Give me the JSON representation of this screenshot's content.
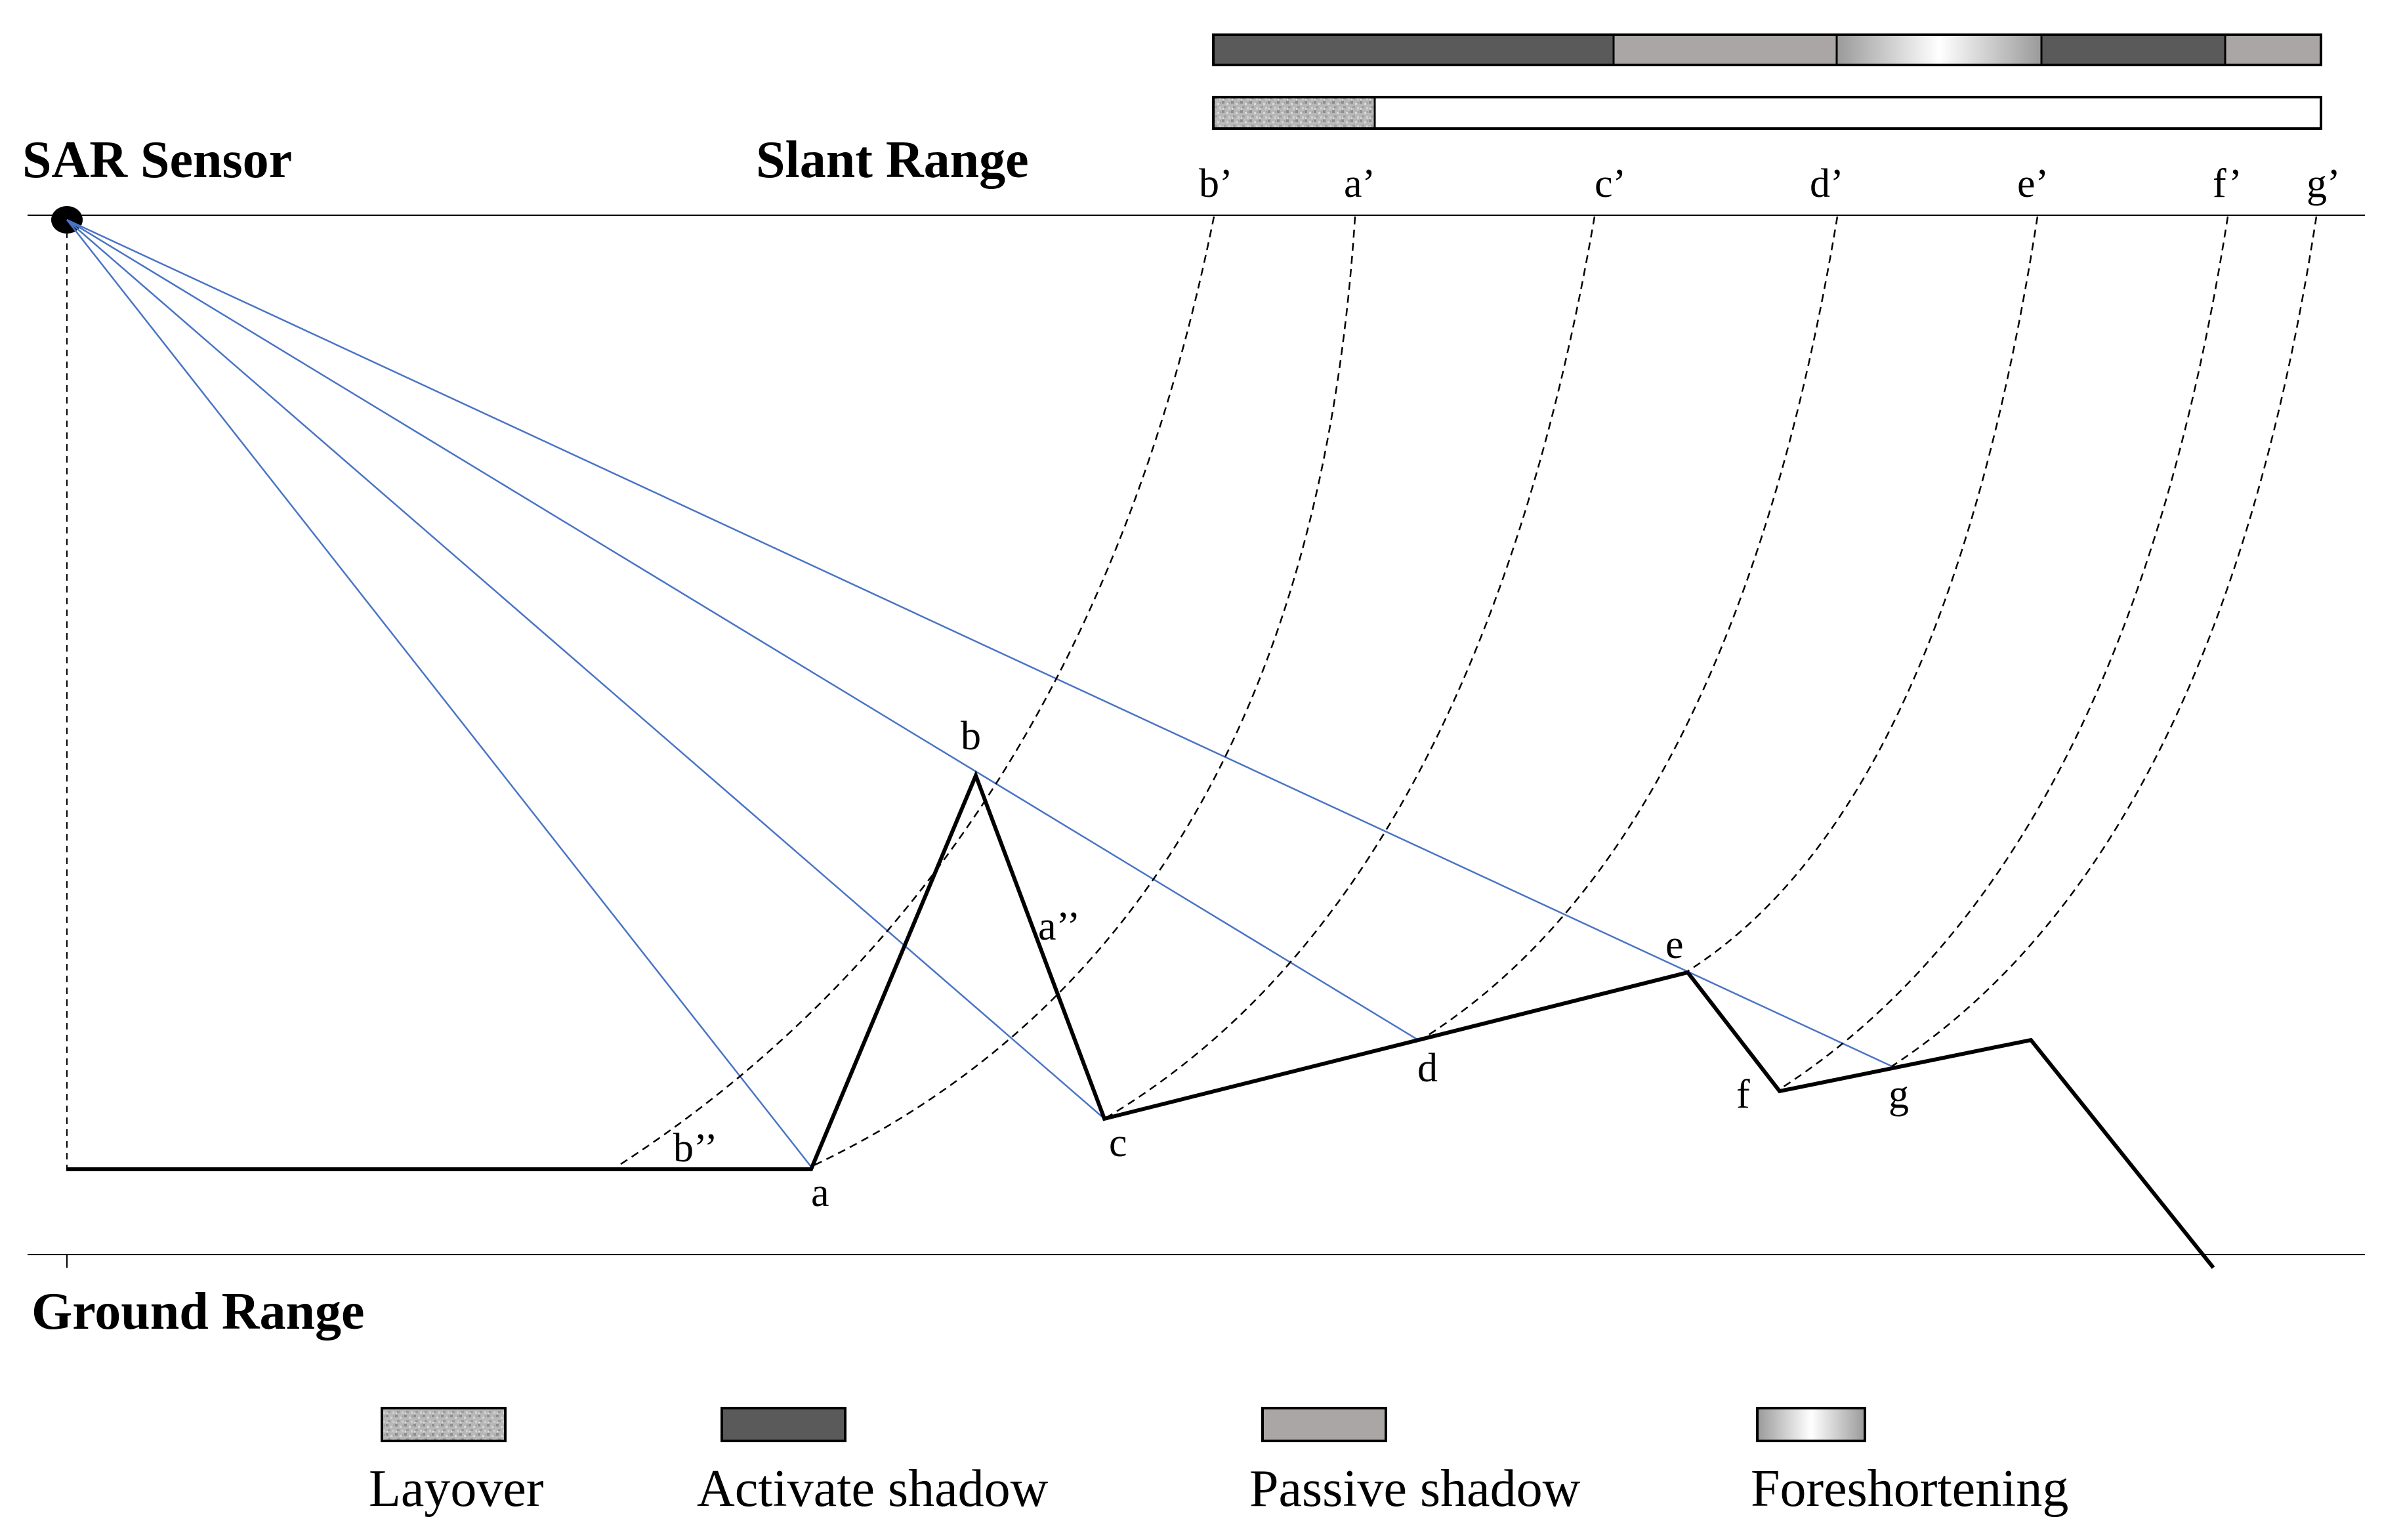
{
  "labels": {
    "sensor": "SAR Sensor",
    "slant_range": "Slant Range",
    "ground_range": "Ground Range"
  },
  "points": {
    "a": "a",
    "b": "b",
    "c": "c",
    "d": "d",
    "e": "e",
    "f": "f",
    "g": "g",
    "a_double": "a’’",
    "b_double": "b’’"
  },
  "projections": {
    "b_prime": "b’",
    "a_prime": "a’",
    "c_prime": "c’",
    "d_prime": "d’",
    "e_prime": "e’",
    "f_prime": "f’",
    "g_prime": "g’"
  },
  "legend": {
    "layover": "Layover",
    "active_shadow": "Activate shadow",
    "passive_shadow": "Passive shadow",
    "foreshortening": "Foreshortening"
  },
  "colors": {
    "active_shadow": "#5a5a5a",
    "passive_shadow": "#aaa6a6",
    "ray_blue": "#4a74c4",
    "terrain": "#000000"
  }
}
